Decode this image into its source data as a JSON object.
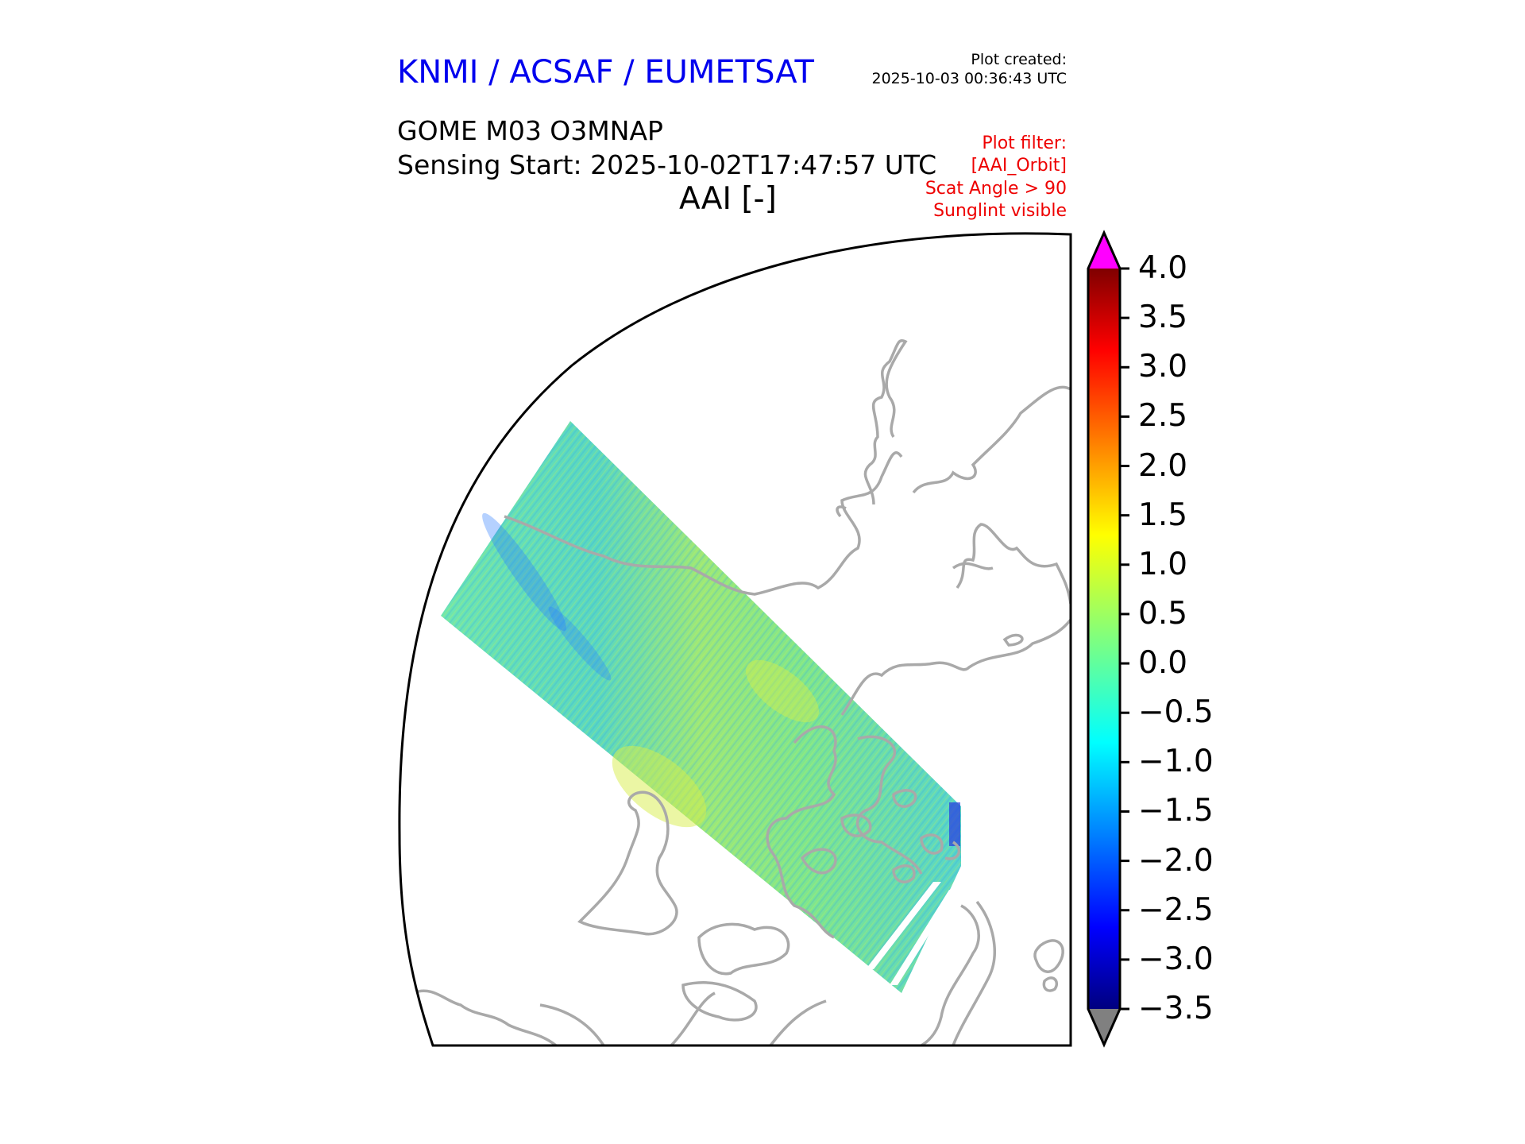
{
  "header": {
    "organization": "KNMI / ACSAF / EUMETSAT",
    "plot_created_label": "Plot created:",
    "plot_created_time": "2025-10-03 00:36:43 UTC",
    "product": "GOME M03 O3MNAP",
    "sensing_start": "Sensing Start: 2025-10-02T17:47:57 UTC",
    "variable_title": "AAI [-]",
    "filters": [
      "Plot filter:",
      "[AAI_Orbit]",
      "Scat Angle > 90",
      "Sunglint visible"
    ]
  },
  "colorbar": {
    "ticks": [
      "4.0",
      "3.5",
      "3.0",
      "2.5",
      "2.0",
      "1.5",
      "1.0",
      "0.5",
      "0.0",
      "−0.5",
      "−1.0",
      "−1.5",
      "−2.0",
      "−2.5",
      "−3.0",
      "−3.5"
    ],
    "range": [
      -3.5,
      4.0
    ],
    "over_color": "#ff00ff",
    "under_color": "#808080",
    "colormap": "jet"
  },
  "colors": {
    "org_title": "#0000ee",
    "filter_text": "#ee0000",
    "coastline": "#a9a9a9",
    "swath_typical": "#5fe6a0"
  }
}
